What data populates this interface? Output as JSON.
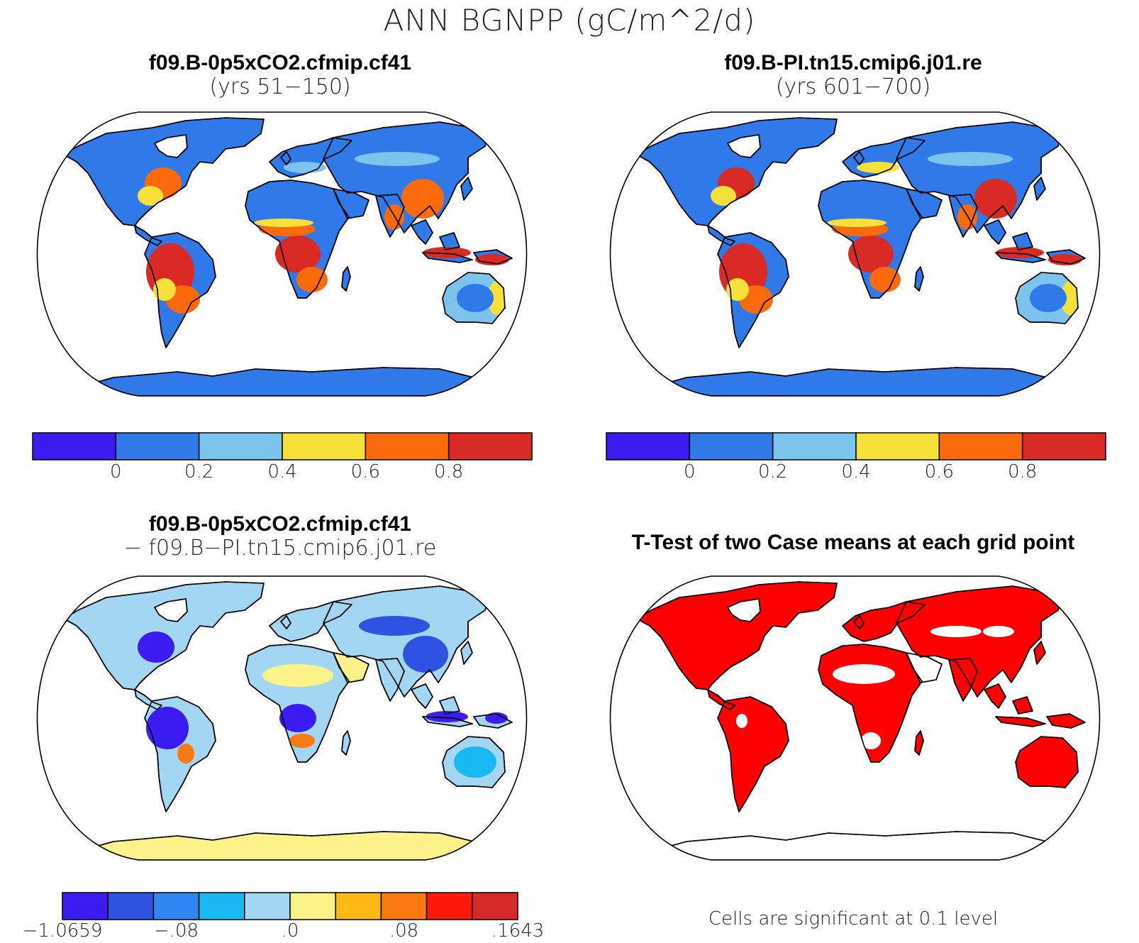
{
  "title": "ANN BGNPP (gC/m^2/d)",
  "colors": {
    "c_neg": "#3a1bf0",
    "c_0_02": "#2f7ae8",
    "c_02_04": "#7cc4ee",
    "c_04_06": "#f8e03a",
    "c_06_08": "#fb6a0a",
    "c_08_up": "#d92a26",
    "ocean": "#ffffff",
    "sig": "#ff0000"
  },
  "panels": [
    {
      "id": "case1",
      "title_line1": "f09.B-0p5xCO2.cfmip.cf41",
      "title_line2": "(yrs 51−150)",
      "colorbar": {
        "colors": [
          "#3a1bf0",
          "#2f7ae8",
          "#7cc4ee",
          "#f8e03a",
          "#fb6a0a",
          "#d92a26"
        ],
        "labels": [
          "0",
          "0.2",
          "0.4",
          "0.6",
          "0.8"
        ]
      }
    },
    {
      "id": "case2",
      "title_line1": "f09.B-PI.tn15.cmip6.j01.re",
      "title_line2": "(yrs 601−700)",
      "colorbar": {
        "colors": [
          "#3a1bf0",
          "#2f7ae8",
          "#7cc4ee",
          "#f8e03a",
          "#fb6a0a",
          "#d92a26"
        ],
        "labels": [
          "0",
          "0.2",
          "0.4",
          "0.6",
          "0.8"
        ]
      }
    },
    {
      "id": "diff",
      "title_line1": "f09.B-0p5xCO2.cfmip.cf41",
      "title_line2": "− f09.B−PI.tn15.cmip6.j01.re",
      "colorbar": {
        "colors": [
          "#3a1bf0",
          "#2f52e0",
          "#2f86f0",
          "#18b8f2",
          "#a3d6f2",
          "#fbf38a",
          "#fbb814",
          "#fb7a10",
          "#fa1a0a",
          "#d62a2a"
        ],
        "labels": [
          "−1.0659",
          "−.08",
          ".0",
          ".08",
          ".1643"
        ]
      }
    },
    {
      "id": "ttest",
      "title_line1": "T-Test of two Case means at each grid point",
      "note": "Cells are significant at 0.1 level"
    }
  ]
}
